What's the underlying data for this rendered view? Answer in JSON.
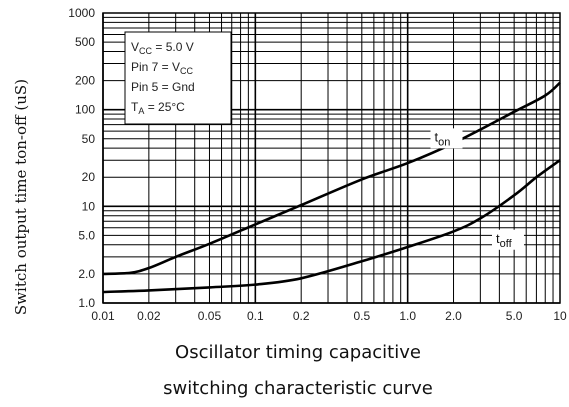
{
  "chart_data": {
    "type": "line",
    "x_scale": "log",
    "y_scale": "log",
    "xlim": [
      0.01,
      10
    ],
    "ylim": [
      1.0,
      1000
    ],
    "grid": true,
    "xlabel": "Oscillator timing capacitive",
    "caption": "switching characteristic curve",
    "ylabel": "Switch output time ton-off (uS)",
    "x_ticks": [
      {
        "v": 0.01,
        "label": "0.01"
      },
      {
        "v": 0.02,
        "label": "0.02"
      },
      {
        "v": 0.05,
        "label": "0.05"
      },
      {
        "v": 0.1,
        "label": "0.1"
      },
      {
        "v": 0.2,
        "label": "0.2"
      },
      {
        "v": 0.5,
        "label": "0.5"
      },
      {
        "v": 1.0,
        "label": "1.0"
      },
      {
        "v": 2.0,
        "label": "2.0"
      },
      {
        "v": 5.0,
        "label": "5.0"
      },
      {
        "v": 10,
        "label": "10"
      }
    ],
    "y_ticks": [
      {
        "v": 1.0,
        "label": "1.0"
      },
      {
        "v": 2.0,
        "label": "2.0"
      },
      {
        "v": 5.0,
        "label": "5.0"
      },
      {
        "v": 10,
        "label": "10"
      },
      {
        "v": 20,
        "label": "20"
      },
      {
        "v": 50,
        "label": "50"
      },
      {
        "v": 100,
        "label": "100"
      },
      {
        "v": 200,
        "label": "200"
      },
      {
        "v": 500,
        "label": "500"
      },
      {
        "v": 1000,
        "label": "1000"
      }
    ],
    "annotation": {
      "lines": [
        "VCC = 5.0 V",
        "Pin 7 = VCC",
        "Pin 5 = Gnd",
        "TA = 25°C"
      ]
    },
    "series": [
      {
        "name": "ton",
        "x": [
          0.01,
          0.015,
          0.02,
          0.03,
          0.05,
          0.1,
          0.2,
          0.5,
          1.0,
          2.0,
          5.0,
          8.0,
          10
        ],
        "y": [
          2.0,
          2.05,
          2.3,
          3.0,
          4.1,
          6.5,
          10.3,
          19,
          28,
          45,
          95,
          140,
          190
        ]
      },
      {
        "name": "toff",
        "x": [
          0.01,
          0.02,
          0.05,
          0.1,
          0.2,
          0.5,
          1.0,
          2.0,
          3.0,
          5.0,
          7.0,
          10
        ],
        "y": [
          1.3,
          1.35,
          1.45,
          1.55,
          1.8,
          2.7,
          3.8,
          5.5,
          7.5,
          13,
          20,
          30
        ]
      }
    ]
  }
}
